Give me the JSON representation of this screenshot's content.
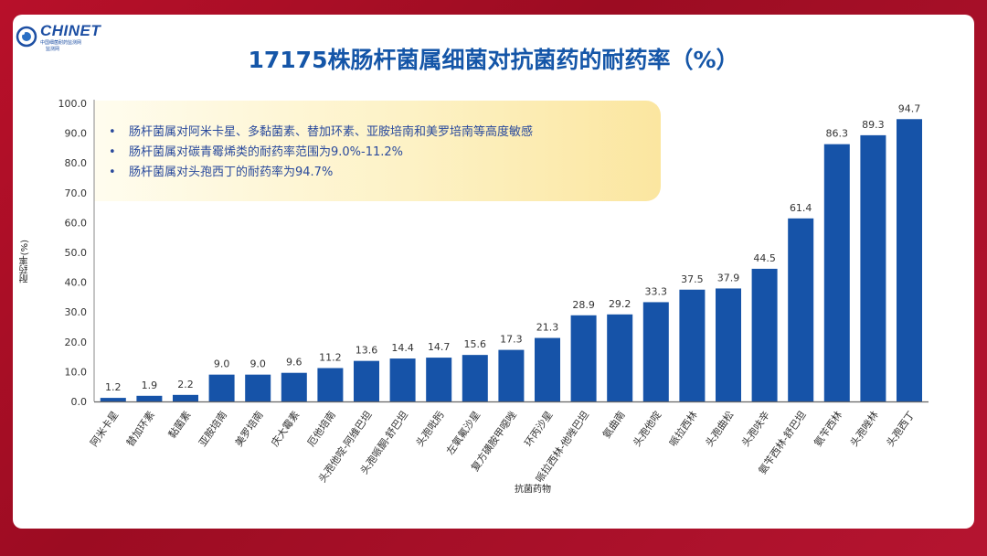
{
  "header": {
    "logo_text": "CHINET",
    "logo_sub1": "中国细菌耐药监测网",
    "logo_sub2": "监测网",
    "title": "17175株肠杆菌属细菌对抗菌药的耐药率（%）"
  },
  "callout": {
    "bullets": [
      "肠杆菌属对阿米卡星、多黏菌素、替加环素、亚胺培南和美罗培南等高度敏感",
      "肠杆菌属对碳青霉烯类的耐药率范围为9.0%-11.2%",
      "肠杆菌属对头孢西丁的耐药率为94.7%"
    ]
  },
  "colors": {
    "bar": "#1653a8",
    "title": "#1556a8",
    "frame": "#b8102a"
  },
  "chart_data": {
    "type": "bar",
    "title": "17175株肠杆菌属细菌对抗菌药的耐药率（%）",
    "xlabel": "抗菌药物",
    "ylabel": "耐药率(%)",
    "ylim": [
      0,
      100
    ],
    "yticks": [
      "0.0",
      "10.0",
      "20.0",
      "30.0",
      "40.0",
      "50.0",
      "60.0",
      "70.0",
      "80.0",
      "90.0",
      "100.0"
    ],
    "categories": [
      "阿米卡星",
      "替加环素",
      "黏菌素",
      "亚胺培南",
      "美罗培南",
      "庆大霉素",
      "厄他培南",
      "头孢他啶-阿维巴坦",
      "头孢哌酮-舒巴坦",
      "头孢吡肟",
      "左氧氟沙星",
      "复方磺胺甲噁唑",
      "环丙沙星",
      "哌拉西林-他唑巴坦",
      "氨曲南",
      "头孢他啶",
      "哌拉西林",
      "头孢曲松",
      "头孢呋辛",
      "氨苄西林-舒巴坦",
      "氨苄西林",
      "头孢唑林",
      "头孢西丁"
    ],
    "values": [
      1.2,
      1.9,
      2.2,
      9.0,
      9.0,
      9.6,
      11.2,
      13.6,
      14.4,
      14.7,
      15.6,
      17.3,
      21.3,
      28.9,
      29.2,
      33.3,
      37.5,
      37.9,
      44.5,
      61.4,
      86.3,
      89.3,
      94.7
    ],
    "value_labels": [
      "1.2",
      "1.9",
      "2.2",
      "9.0",
      "9.0",
      "9.6",
      "11.2",
      "13.6",
      "14.4",
      "14.7",
      "15.6",
      "17.3",
      "21.3",
      "28.9",
      "29.2",
      "33.3",
      "37.5",
      "37.9",
      "44.5",
      "61.4",
      "86.3",
      "89.3",
      "94.7"
    ]
  }
}
